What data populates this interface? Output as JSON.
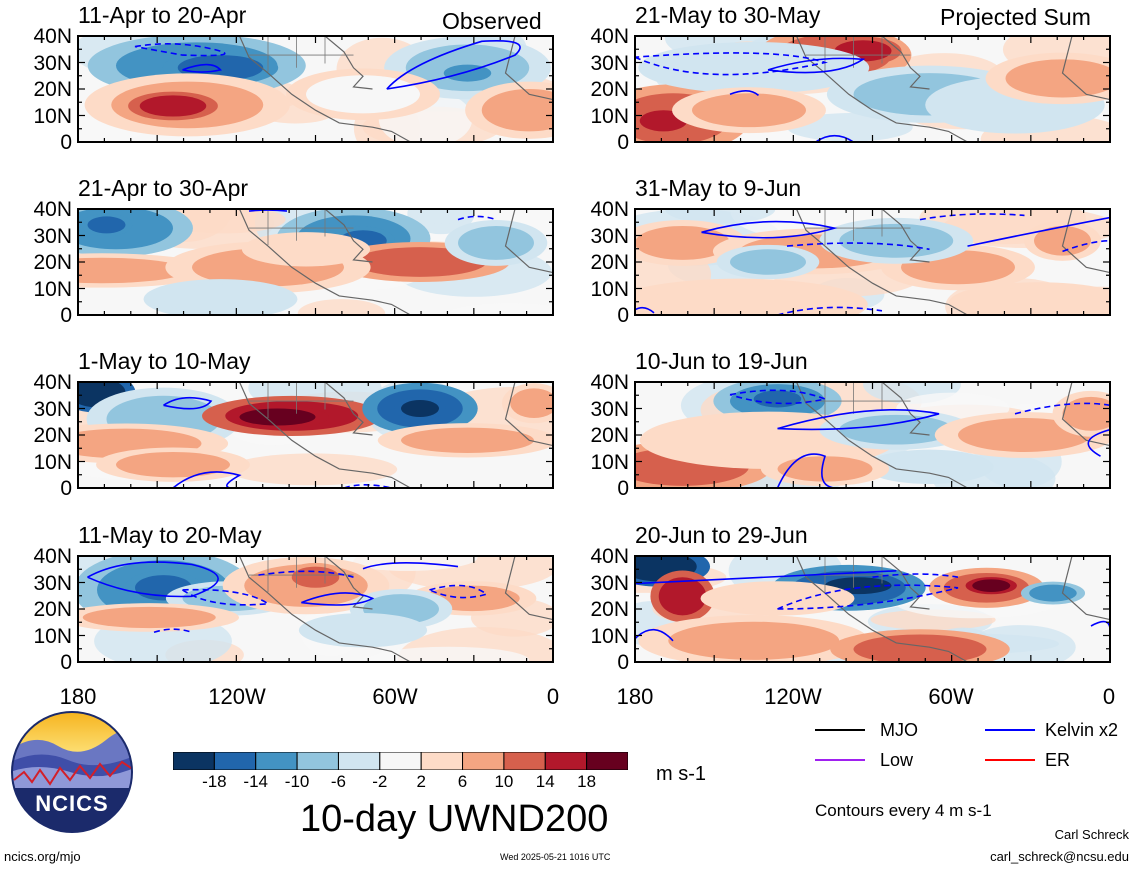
{
  "chart_data": {
    "type": "heatmap",
    "title": "10-day UWND200",
    "units": "m s-1",
    "contour_note": "Contours every 4 m s-1",
    "x_ticks": [
      "180",
      "120W",
      "60W",
      "0"
    ],
    "y_ticks": [
      "40N",
      "30N",
      "20N",
      "10N",
      "0"
    ],
    "column_labels": [
      "Observed",
      "Projected Sum"
    ],
    "panels": [
      {
        "period": "11-Apr to 20-Apr",
        "column": "observed"
      },
      {
        "period": "21-Apr to 30-Apr",
        "column": "observed"
      },
      {
        "period": "1-May to 10-May",
        "column": "observed"
      },
      {
        "period": "11-May to 20-May",
        "column": "observed"
      },
      {
        "period": "21-May to 30-May",
        "column": "projected"
      },
      {
        "period": "31-May to 9-Jun",
        "column": "projected"
      },
      {
        "period": "10-Jun to 19-Jun",
        "column": "projected"
      },
      {
        "period": "20-Jun to 29-Jun",
        "column": "projected"
      }
    ],
    "colorbar": {
      "ticks": [
        "-18",
        "-14",
        "-10",
        "-6",
        "-2",
        "2",
        "6",
        "10",
        "14",
        "18"
      ],
      "colors": [
        "#0b3462",
        "#2166ac",
        "#4393c3",
        "#92c5de",
        "#d1e5f0",
        "#f7f7f7",
        "#fddbc7",
        "#f4a582",
        "#d6604d",
        "#b2182b",
        "#67001f"
      ]
    },
    "legend": [
      {
        "label": "MJO",
        "color": "#000000"
      },
      {
        "label": "Kelvin x2",
        "color": "#0000ff"
      },
      {
        "label": "Low",
        "color": "#a020f0"
      },
      {
        "label": "ER",
        "color": "#ff0000"
      }
    ]
  },
  "branding": {
    "logo_text": "NCICS",
    "site": "ncics.org/mjo",
    "timestamp": "Wed 2025-05-21 1016 UTC",
    "author": "Carl Schreck",
    "email": "carl_schreck@ncsu.edu"
  }
}
